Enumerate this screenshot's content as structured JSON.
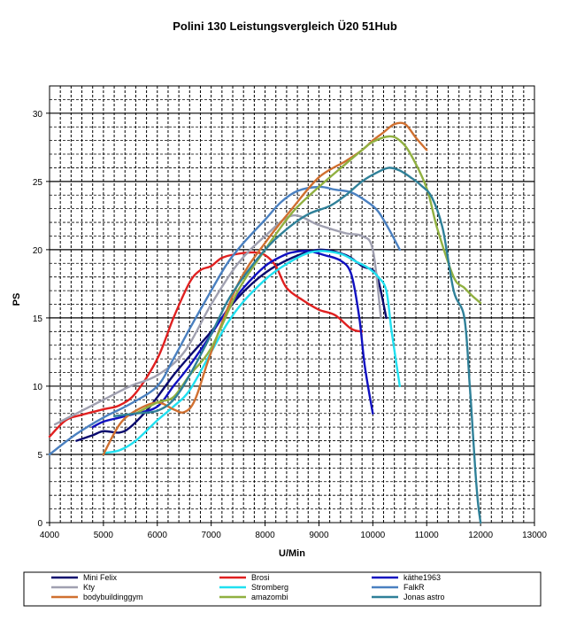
{
  "chart_data": {
    "type": "line",
    "title": "Polini 130 Leistungsvergleich  Ü20 51Hub",
    "xlabel": "U/Min",
    "ylabel": "PS",
    "xlim": [
      4000,
      13000
    ],
    "ylim": [
      0,
      32
    ],
    "xticks": [
      4000,
      5000,
      6000,
      7000,
      8000,
      9000,
      10000,
      11000,
      12000,
      13000
    ],
    "yticks": [
      0,
      5,
      10,
      15,
      20,
      25,
      30
    ],
    "grid": true,
    "legend_position": "bottom",
    "series": [
      {
        "name": "Mini Felix",
        "color": "#0a0a6e",
        "x": [
          4500,
          4800,
          5000,
          5300,
          5500,
          5800,
          6000,
          6300,
          6600,
          7000,
          7500,
          8000,
          8500,
          9000,
          9500,
          9800,
          10000,
          10100,
          10250
        ],
        "y": [
          6,
          6.4,
          6.7,
          6.6,
          7,
          8.2,
          9.2,
          10.8,
          12.2,
          14,
          16.5,
          18.3,
          19.4,
          20,
          19.6,
          18.8,
          18.5,
          17.8,
          15
        ]
      },
      {
        "name": "Brosi",
        "color": "#e02020",
        "x": [
          4000,
          4300,
          4600,
          5000,
          5300,
          5600,
          6000,
          6300,
          6600,
          6800,
          7000,
          7200,
          7500,
          7800,
          8000,
          8200,
          8400,
          8700,
          9000,
          9300,
          9600,
          9800
        ],
        "y": [
          6.3,
          7.5,
          7.9,
          8.3,
          8.6,
          9.5,
          12,
          15,
          17.6,
          18.5,
          18.8,
          19.4,
          19.7,
          19.8,
          19.6,
          18.8,
          17.2,
          16.3,
          15.6,
          15.2,
          14.2,
          14
        ]
      },
      {
        "name": "käthe1963",
        "color": "#1010c0",
        "x": [
          4800,
          5000,
          5300,
          5600,
          6000,
          6300,
          6600,
          7000,
          7300,
          7600,
          8000,
          8300,
          8500,
          8800,
          9100,
          9400,
          9600,
          9750,
          9850,
          10000
        ],
        "y": [
          7,
          7.4,
          7.7,
          8,
          8.5,
          10,
          11.5,
          13.8,
          15.6,
          17.2,
          18.8,
          19.5,
          19.8,
          19.9,
          19.6,
          19.2,
          18.2,
          15,
          11.5,
          8
        ]
      },
      {
        "name": "Kty",
        "color": "#a0a0b0",
        "x": [
          4100,
          4500,
          5000,
          5500,
          6000,
          6500,
          7000,
          7500,
          8000,
          8500,
          9000,
          9500,
          9800,
          10000,
          10150
        ],
        "y": [
          7.2,
          8,
          9,
          10,
          10.8,
          12.5,
          16,
          19,
          21,
          22.5,
          21.8,
          21.2,
          21,
          20,
          15
        ]
      },
      {
        "name": "Stromberg",
        "color": "#20e0f0",
        "x": [
          5000,
          5300,
          5600,
          6000,
          6300,
          6600,
          7000,
          7300,
          7600,
          8000,
          8300,
          8700,
          9000,
          9400,
          9700,
          9900,
          10100,
          10250,
          10350,
          10500
        ],
        "y": [
          5.1,
          5.3,
          6,
          7.5,
          8.5,
          9.7,
          12.5,
          14.6,
          16.2,
          17.8,
          18.7,
          19.6,
          19.9,
          19.7,
          19.1,
          18.7,
          18,
          17,
          14,
          10
        ]
      },
      {
        "name": "FalkR",
        "color": "#4a80c0",
        "x": [
          4000,
          4500,
          5000,
          5500,
          6000,
          6300,
          6600,
          7000,
          7300,
          7600,
          8000,
          8300,
          8600,
          9000,
          9300,
          9600,
          9900,
          10100,
          10300,
          10500
        ],
        "y": [
          5,
          6.5,
          7.7,
          8.7,
          10,
          12,
          14.2,
          17,
          19,
          20.5,
          22.2,
          23.5,
          24.3,
          24.6,
          24.4,
          24.2,
          23.5,
          22.8,
          21.5,
          20
        ]
      },
      {
        "name": "bodybuildinggym",
        "color": "#d07030",
        "x": [
          5000,
          5300,
          5600,
          6000,
          6300,
          6500,
          6700,
          7000,
          7500,
          8000,
          8500,
          9000,
          9500,
          9800,
          10000,
          10200,
          10400,
          10600,
          10800,
          11000
        ],
        "y": [
          5,
          7.2,
          8.2,
          8.8,
          8.3,
          8.1,
          9,
          12.5,
          17.5,
          20.5,
          23,
          25.3,
          26.5,
          27.3,
          28,
          28.6,
          29.2,
          29.2,
          28.2,
          27.3
        ]
      },
      {
        "name": "amazombi",
        "color": "#90b040",
        "x": [
          5600,
          6000,
          6300,
          6600,
          7000,
          7500,
          8000,
          8500,
          9000,
          9500,
          9800,
          10000,
          10300,
          10500,
          10700,
          11000,
          11200,
          11500,
          11700,
          11850,
          12000
        ],
        "y": [
          8,
          8.8,
          9.2,
          10.8,
          12.8,
          17,
          20,
          22.7,
          24.6,
          26.3,
          27.3,
          27.9,
          28.3,
          28,
          27,
          24.5,
          21.5,
          18,
          17.2,
          16.6,
          16.1
        ]
      },
      {
        "name": "Jonas astro",
        "color": "#2f8098",
        "x": [
          5200,
          5600,
          6000,
          6300,
          6600,
          7000,
          7300,
          7600,
          8000,
          8400,
          8800,
          9200,
          9500,
          9800,
          10100,
          10300,
          10500,
          10700,
          10900,
          11100,
          11300,
          11500,
          11700,
          11800,
          11850,
          11900,
          11950,
          12000
        ],
        "y": [
          7.8,
          8,
          8.2,
          9,
          10.8,
          13.8,
          16.2,
          18,
          20,
          21.5,
          22.6,
          23.2,
          24,
          25,
          25.7,
          26,
          25.8,
          25.3,
          24.7,
          23.8,
          21.5,
          17,
          15,
          10,
          7,
          4,
          1.5,
          0
        ]
      }
    ]
  }
}
